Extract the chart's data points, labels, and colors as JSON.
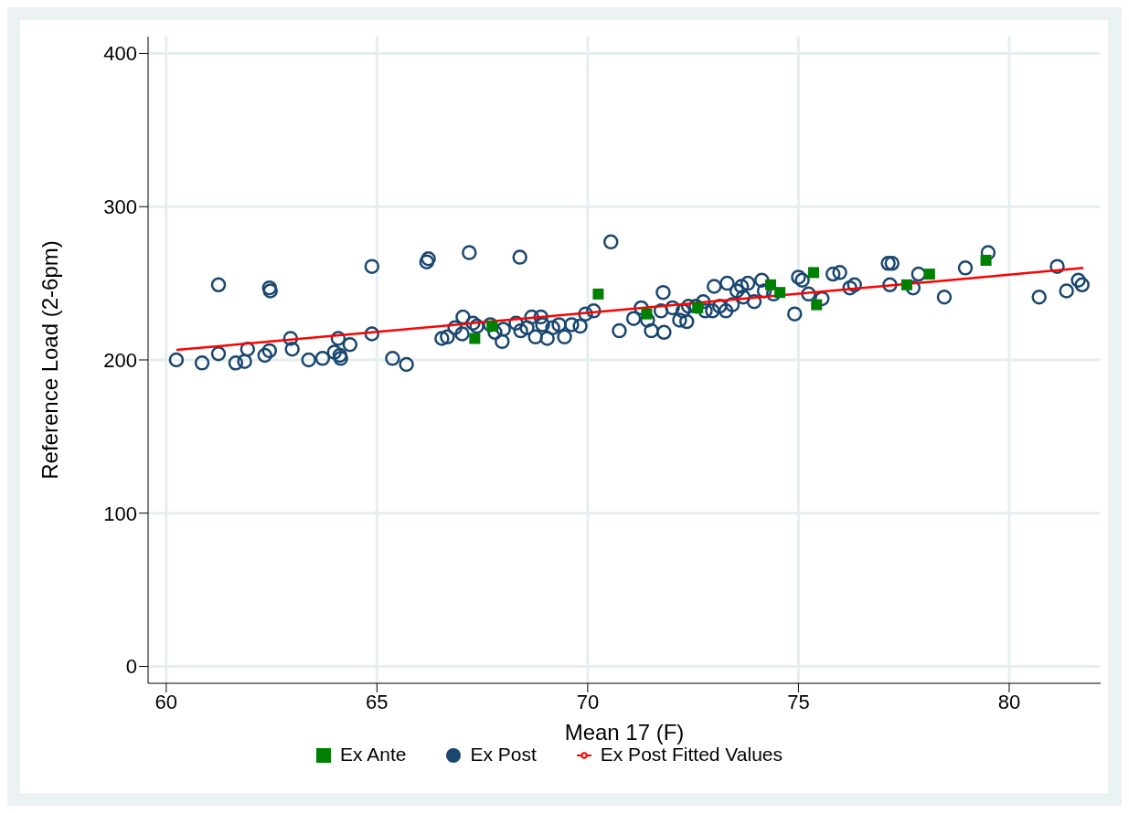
{
  "chart_data": {
    "type": "scatter",
    "xlabel": "Mean 17 (F)",
    "ylabel": "Reference Load (2-6pm)",
    "xlim": [
      59.57,
      82.17
    ],
    "ylim": [
      -11,
      411
    ],
    "xticks": [
      60,
      65,
      70,
      75,
      80
    ],
    "yticks": [
      0,
      100,
      200,
      300,
      400
    ],
    "grid": true,
    "legend": "bottom",
    "series": [
      {
        "name": "Ex Post",
        "marker": "circle",
        "color": "#1a476f",
        "x": [
          60.24,
          60.85,
          61.24,
          61.24,
          61.65,
          61.86,
          61.93,
          62.34,
          62.45,
          62.45,
          62.47,
          62.95,
          62.99,
          63.38,
          63.71,
          63.99,
          64.08,
          64.12,
          64.14,
          64.36,
          64.88,
          64.88,
          65.37,
          65.7,
          66.18,
          66.22,
          66.54,
          66.67,
          66.85,
          67.02,
          67.04,
          67.19,
          67.28,
          67.37,
          67.69,
          67.8,
          67.97,
          68,
          68.3,
          68.39,
          68.41,
          68.56,
          68.67,
          68.76,
          68.89,
          68.93,
          69.04,
          69.17,
          69.32,
          69.45,
          69.62,
          69.82,
          69.95,
          70.14,
          70.55,
          70.75,
          71.09,
          71.27,
          71.42,
          71.51,
          71.79,
          71.74,
          71.81,
          72.01,
          72.18,
          72.26,
          72.35,
          72.39,
          72.57,
          72.74,
          72.79,
          72.96,
          73,
          73.13,
          73.28,
          73.31,
          73.43,
          73.54,
          73.65,
          73.69,
          73.8,
          73.95,
          74.13,
          74.19,
          74.41,
          74.91,
          75,
          75.09,
          75.24,
          75.56,
          75.82,
          75.98,
          76.22,
          76.33,
          77.13,
          77.22,
          77.17,
          77.72,
          77.85,
          78.46,
          78.96,
          79.5,
          80.71,
          81.14,
          81.36,
          81.64,
          81.73
        ],
        "values": [
          200,
          198,
          204,
          249,
          198,
          199,
          207,
          203,
          206,
          247,
          245,
          214,
          207,
          200,
          201,
          205,
          214,
          203,
          201,
          210,
          217,
          261,
          201,
          197,
          264,
          266,
          214,
          215,
          221,
          217,
          228,
          270,
          224,
          222,
          223,
          218,
          212,
          220,
          224,
          267,
          219,
          221,
          228,
          215,
          228,
          223,
          214,
          221,
          223,
          215,
          223,
          222,
          230,
          232,
          277,
          219,
          227,
          234,
          226,
          219,
          244,
          232,
          218,
          234,
          226,
          232,
          225,
          235,
          235,
          238,
          232,
          232,
          248,
          235,
          232,
          250,
          236,
          245,
          248,
          241,
          250,
          238,
          252,
          245,
          243,
          230,
          254,
          252,
          243,
          240,
          256,
          257,
          247,
          249,
          263,
          263,
          249,
          247,
          256,
          241,
          260,
          270,
          241,
          261,
          245,
          252,
          249
        ]
      },
      {
        "name": "Ex Post Fitted Values",
        "type": "line",
        "marker": "none",
        "line_style": "solid",
        "color": "#ff0000",
        "x": [
          60.24,
          81.76
        ],
        "values": [
          206.5,
          260
        ]
      },
      {
        "name": "Ex Ante",
        "marker": "square",
        "color": "#008000",
        "x": [
          67.32,
          67.73,
          70.25,
          71.4,
          72.61,
          74.34,
          74.56,
          75.36,
          75.43,
          77.57,
          78.11,
          79.45
        ],
        "values": [
          214,
          222,
          243,
          230,
          234,
          249,
          244,
          257,
          236,
          249,
          256,
          265
        ]
      }
    ]
  }
}
